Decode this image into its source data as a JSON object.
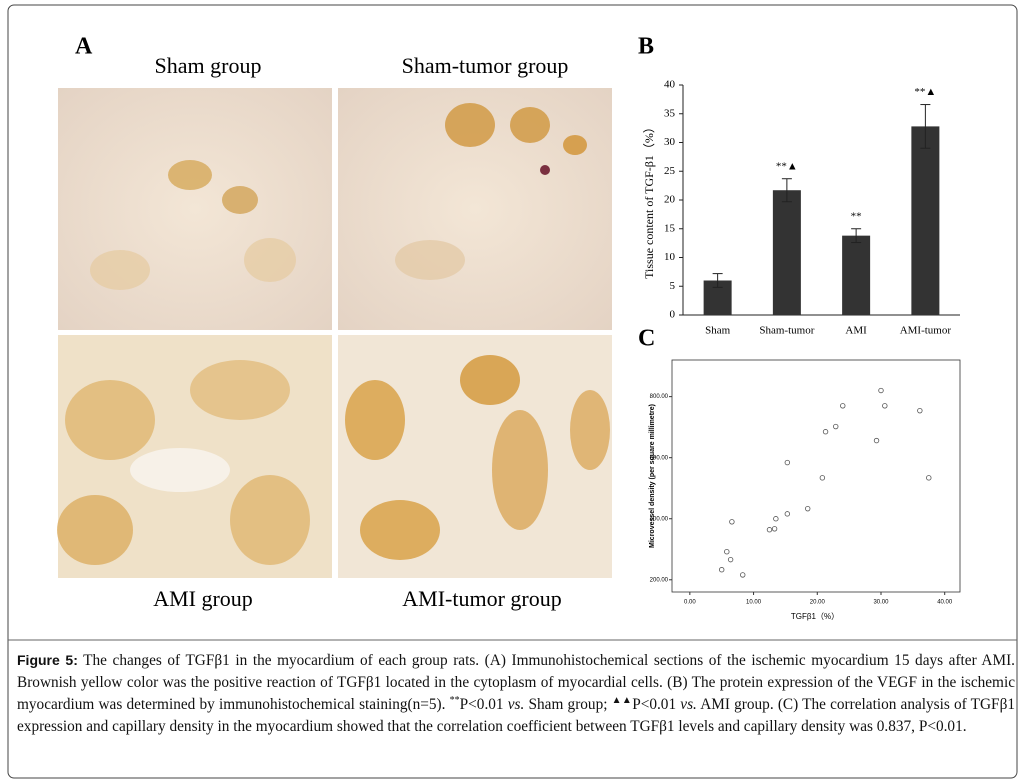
{
  "panel_a": {
    "letter": "A",
    "titles": [
      "Sham group",
      "Sham-tumor group",
      "AMI group",
      "AMI-tumor group"
    ]
  },
  "chart_data": [
    {
      "type": "bar",
      "letter": "B",
      "y_label": "Tissue content of TGF-β1（%）",
      "categories": [
        "Sham",
        "Sham-tumor",
        "AMI",
        "AMI-tumor"
      ],
      "values": [
        6.0,
        21.7,
        13.8,
        32.8
      ],
      "errors": [
        1.2,
        2.0,
        1.2,
        3.8
      ],
      "annotations": [
        "",
        "**▲",
        "**",
        "**▲"
      ],
      "color": "#333333",
      "ylim": [
        0,
        40
      ],
      "yticks": [
        0,
        5,
        10,
        15,
        20,
        25,
        30,
        35,
        40
      ],
      "grid": false
    },
    {
      "type": "scatter",
      "letter": "C",
      "x_label": "TGFβ1（%）",
      "y_label": "Microvessel density (per square millimetre)",
      "x": [
        5.0,
        5.8,
        6.4,
        6.6,
        8.3,
        12.5,
        13.3,
        13.5,
        15.3,
        15.3,
        18.5,
        20.8,
        21.3,
        22.9,
        24.0,
        29.3,
        30.0,
        30.6,
        36.1,
        37.5
      ],
      "values": [
        233,
        292,
        266,
        390,
        216,
        364,
        367,
        400,
        416,
        584,
        433,
        534,
        685,
        702,
        770,
        656,
        820,
        770,
        754,
        534
      ],
      "color": "#555555",
      "xlim": [
        -2.8,
        42.4
      ],
      "ylim": [
        160,
        920
      ],
      "xticks": [
        {
          "value": 0,
          "label": "0.00"
        },
        {
          "value": 10,
          "label": "10.00"
        },
        {
          "value": 20,
          "label": "20.00"
        },
        {
          "value": 30,
          "label": "30.00"
        },
        {
          "value": 40,
          "label": "40.00"
        }
      ],
      "yticks": [
        {
          "value": 200,
          "label": "200.00"
        },
        {
          "value": 400,
          "label": "400.00"
        },
        {
          "value": 600,
          "label": "600.00"
        },
        {
          "value": 800,
          "label": "800.00"
        }
      ]
    }
  ],
  "caption": {
    "label": "Figure 5:",
    "parts": [
      " The changes of TGFβ1 in the myocardium of each group rats. (A) Immunohistochemical sections of the ischemic myocardium 15 days after AMI. Brownish yellow color was the positive reaction of TGFβ1 located in the cytoplasm of myocardial cells. (B) The protein expression of the VEGF in the ischemic myocardium was determined by immunohistochemical staining(n=5). ",
      "**",
      "P<0.01 ",
      "vs.",
      " Sham group; ",
      "▲▲",
      "P<0.01 ",
      "vs.",
      " AMI group. (C) The correlation analysis of TGFβ1 expression and capillary density in the myocardium showed that the correlation coefficient between TGFβ1 levels and capillary density was 0.837, P<0.01."
    ]
  }
}
